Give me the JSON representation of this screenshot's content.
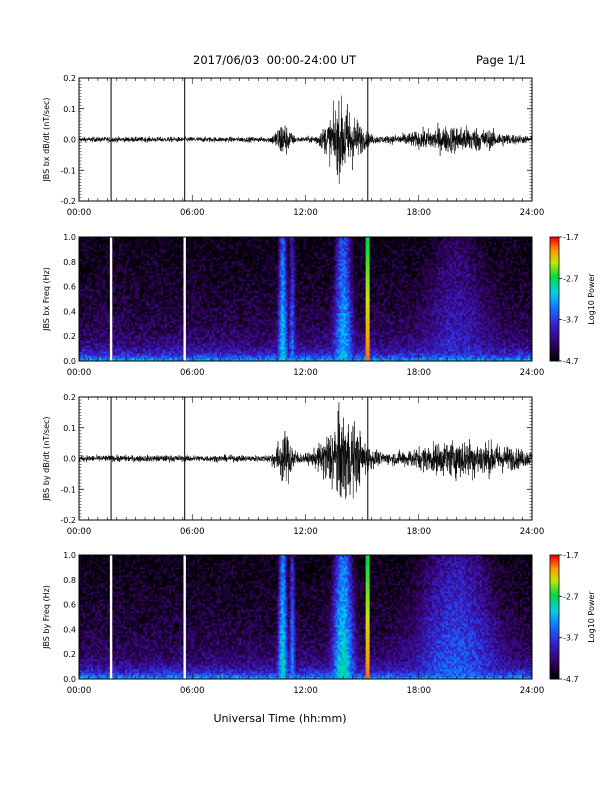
{
  "header": {
    "title": "2017/06/03  00:00-24:00 UT",
    "page": "Page 1/1"
  },
  "xlabel": "Universal Time (hh:mm)",
  "chart_data": [
    {
      "type": "line",
      "ylabel": "JBS bx dB/dt (nT/sec)",
      "xlim": [
        "00:00",
        "24:00"
      ],
      "xticks": [
        "00:00",
        "06:00",
        "12:00",
        "18:00",
        "24:00"
      ],
      "ylim": [
        -0.2,
        0.2
      ],
      "yticks": [
        "-0.2",
        "-0.1",
        "0.0",
        "0.1",
        "0.2"
      ],
      "markers_h": [
        1.7,
        5.6,
        15.3
      ],
      "bursts": [
        {
          "center_h": 10.8,
          "width_h": 0.4,
          "amp": 0.05
        },
        {
          "center_h": 14.0,
          "width_h": 0.9,
          "amp": 0.11
        },
        {
          "center_h": 20.0,
          "width_h": 2.5,
          "amp": 0.035
        }
      ],
      "noise_amp": 0.008
    },
    {
      "type": "heatmap",
      "ylabel": "JBS bx Freq (Hz)",
      "xlim": [
        "00:00",
        "24:00"
      ],
      "xticks": [
        "00:00",
        "06:00",
        "12:00",
        "18:00",
        "24:00"
      ],
      "ylim": [
        0,
        1.0
      ],
      "yticks": [
        "0.0",
        "0.2",
        "0.4",
        "0.6",
        "0.8",
        "1.0"
      ],
      "colorbar": {
        "label": "Log10 Power",
        "ticks": [
          "-1.7",
          "-2.7",
          "-3.7",
          "-4.7"
        ],
        "range": [
          -4.7,
          -1.7
        ]
      },
      "gaps_h": [
        1.7,
        5.6
      ],
      "spike_h": 15.3,
      "hot_bands": [
        {
          "center_h": 10.8,
          "width_h": 0.3,
          "level": -3.0
        },
        {
          "center_h": 11.3,
          "width_h": 0.2,
          "level": -3.4
        },
        {
          "center_h": 14.0,
          "width_h": 0.6,
          "level": -3.1
        },
        {
          "center_h": 20.0,
          "width_h": 2.5,
          "level": -3.8
        }
      ]
    },
    {
      "type": "line",
      "ylabel": "JBS by dB/dt (nT/sec)",
      "xlim": [
        "00:00",
        "24:00"
      ],
      "xticks": [
        "00:00",
        "06:00",
        "12:00",
        "18:00",
        "24:00"
      ],
      "ylim": [
        -0.2,
        0.2
      ],
      "yticks": [
        "-0.2",
        "-0.1",
        "0.0",
        "0.1",
        "0.2"
      ],
      "markers_h": [
        1.7,
        5.6,
        15.3
      ],
      "bursts": [
        {
          "center_h": 10.9,
          "width_h": 0.5,
          "amp": 0.07
        },
        {
          "center_h": 14.0,
          "width_h": 1.1,
          "amp": 0.13
        },
        {
          "center_h": 20.5,
          "width_h": 3.0,
          "amp": 0.05
        }
      ],
      "noise_amp": 0.01
    },
    {
      "type": "heatmap",
      "ylabel": "JBS by Freq (Hz)",
      "xlim": [
        "00:00",
        "24:00"
      ],
      "xticks": [
        "00:00",
        "06:00",
        "12:00",
        "18:00",
        "24:00"
      ],
      "ylim": [
        0,
        1.0
      ],
      "yticks": [
        "0.0",
        "0.2",
        "0.4",
        "0.6",
        "0.8",
        "1.0"
      ],
      "colorbar": {
        "label": "Log10 Power",
        "ticks": [
          "-1.7",
          "-2.7",
          "-3.7",
          "-4.7"
        ],
        "range": [
          -4.7,
          -1.7
        ]
      },
      "gaps_h": [
        1.7,
        5.6
      ],
      "spike_h": 15.3,
      "hot_bands": [
        {
          "center_h": 10.8,
          "width_h": 0.3,
          "level": -2.9
        },
        {
          "center_h": 11.3,
          "width_h": 0.2,
          "level": -3.3
        },
        {
          "center_h": 14.0,
          "width_h": 0.7,
          "level": -2.9
        },
        {
          "center_h": 20.0,
          "width_h": 3.0,
          "level": -3.5
        }
      ]
    }
  ]
}
